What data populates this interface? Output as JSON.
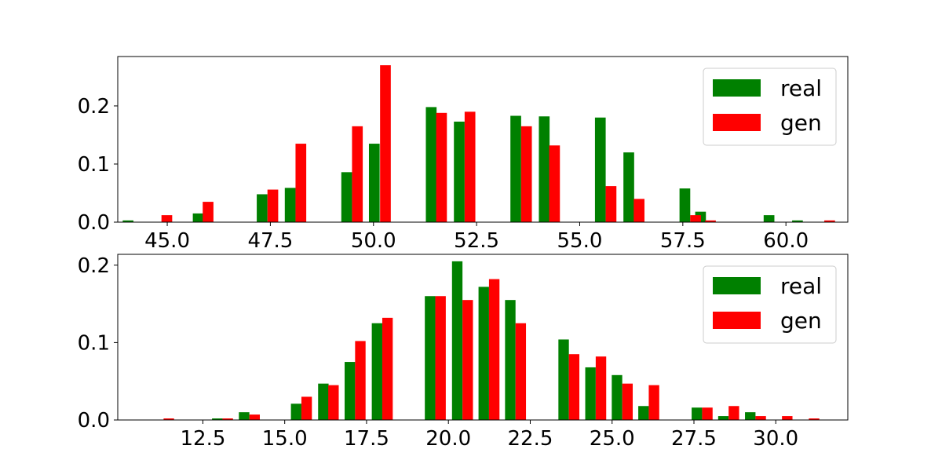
{
  "chart_data": [
    {
      "type": "bar",
      "title": "",
      "xlabel": "",
      "ylabel": "",
      "xlim": [
        43.8,
        61.5
      ],
      "ylim": [
        0,
        0.285
      ],
      "xticks": [
        45.0,
        47.5,
        50.0,
        52.5,
        55.0,
        57.5,
        60.0
      ],
      "xtick_labels": [
        "45.0",
        "47.5",
        "50.0",
        "52.5",
        "55.0",
        "57.5",
        "60.0"
      ],
      "yticks": [
        0.0,
        0.1,
        0.2
      ],
      "ytick_labels": [
        "0.0",
        "0.1",
        "0.2"
      ],
      "bar_width": 0.26,
      "grid": false,
      "legend_position": "top-right",
      "series": [
        {
          "name": "real",
          "color": "#008000",
          "x": [
            44.05,
            45.75,
            47.3,
            47.98,
            49.35,
            50.02,
            51.4,
            52.08,
            53.45,
            54.14,
            55.5,
            56.19,
            57.55,
            57.93,
            59.59,
            60.28
          ],
          "values": [
            0.003,
            0.015,
            0.048,
            0.059,
            0.086,
            0.135,
            0.198,
            0.173,
            0.183,
            0.182,
            0.18,
            0.12,
            0.058,
            0.018,
            0.012,
            0.003
          ]
        },
        {
          "name": "gen",
          "color": "#ff0000",
          "x": [
            44.99,
            45.99,
            47.56,
            48.24,
            49.61,
            50.29,
            51.65,
            52.34,
            53.71,
            54.39,
            55.76,
            56.44,
            57.81,
            58.17,
            61.06
          ],
          "values": [
            0.012,
            0.035,
            0.056,
            0.135,
            0.165,
            0.27,
            0.188,
            0.19,
            0.165,
            0.132,
            0.062,
            0.04,
            0.012,
            0.003,
            0.003
          ]
        }
      ]
    },
    {
      "type": "bar",
      "title": "",
      "xlabel": "",
      "ylabel": "",
      "xlim": [
        9.9,
        32.2
      ],
      "ylim": [
        0,
        0.214
      ],
      "xticks": [
        12.5,
        15.0,
        17.5,
        20.0,
        22.5,
        25.0,
        27.5,
        30.0
      ],
      "xtick_labels": [
        "12.5",
        "15.0",
        "17.5",
        "20.0",
        "22.5",
        "25.0",
        "27.5",
        "30.0"
      ],
      "yticks": [
        0.0,
        0.1,
        0.2
      ],
      "ytick_labels": [
        "0.0",
        "0.1",
        "0.2"
      ],
      "bar_width": 0.32,
      "grid": false,
      "legend_position": "top-right",
      "series": [
        {
          "name": "real",
          "color": "#008000",
          "x": [
            12.94,
            13.76,
            15.35,
            16.18,
            16.99,
            17.82,
            19.44,
            20.27,
            21.08,
            21.89,
            23.52,
            24.34,
            25.15,
            25.96,
            27.59,
            28.4,
            29.22
          ],
          "values": [
            0.002,
            0.01,
            0.021,
            0.047,
            0.075,
            0.125,
            0.16,
            0.205,
            0.172,
            0.155,
            0.104,
            0.068,
            0.058,
            0.018,
            0.016,
            0.005,
            0.01
          ]
        },
        {
          "name": "gen",
          "color": "#ff0000",
          "x": [
            11.46,
            13.26,
            14.08,
            15.67,
            16.49,
            17.31,
            18.14,
            19.76,
            20.59,
            21.4,
            22.21,
            23.84,
            24.66,
            25.47,
            26.28,
            27.91,
            28.72,
            29.54,
            30.35,
            31.17
          ],
          "values": [
            0.002,
            0.002,
            0.007,
            0.03,
            0.045,
            0.102,
            0.132,
            0.16,
            0.155,
            0.182,
            0.125,
            0.085,
            0.082,
            0.047,
            0.045,
            0.016,
            0.018,
            0.005,
            0.005,
            0.002
          ]
        }
      ]
    }
  ]
}
